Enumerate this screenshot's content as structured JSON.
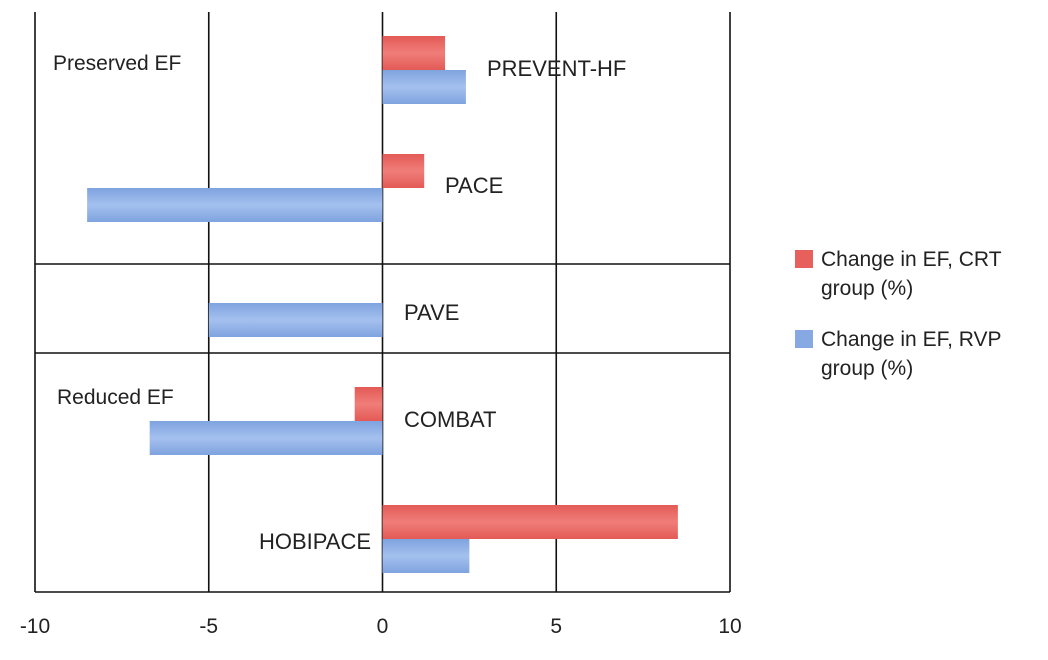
{
  "chart_data": {
    "type": "bar",
    "orientation": "horizontal",
    "xlim": [
      -10,
      10
    ],
    "xticks": [
      -10,
      -5,
      0,
      5,
      10
    ],
    "grid": true,
    "legend_position": "right",
    "categories": [
      "PREVENT-HF",
      "PACE",
      "PAVE",
      "COMBAT",
      "HOBIPACE"
    ],
    "series": [
      {
        "name": "Change in EF, CRT group (%)",
        "color": "#e8605c",
        "values": [
          1.8,
          1.2,
          null,
          -0.8,
          8.5
        ]
      },
      {
        "name": "Change in EF, RVP group (%)",
        "color": "#86a9e3",
        "values": [
          2.4,
          -8.5,
          -5.0,
          -6.7,
          2.5
        ]
      }
    ],
    "group_labels": [
      "Preserved EF",
      "Reduced EF"
    ]
  }
}
